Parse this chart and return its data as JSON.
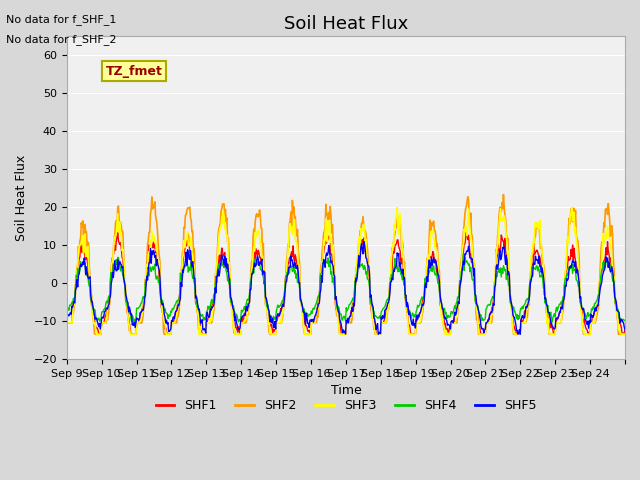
{
  "title": "Soil Heat Flux",
  "xlabel": "Time",
  "ylabel": "Soil Heat Flux",
  "ylim": [
    -20,
    65
  ],
  "yticks": [
    -20,
    -10,
    0,
    10,
    20,
    30,
    40,
    50,
    60
  ],
  "xlim": [
    0,
    16
  ],
  "xtick_positions": [
    0,
    1,
    2,
    3,
    4,
    5,
    6,
    7,
    8,
    9,
    10,
    11,
    12,
    13,
    14,
    15,
    16
  ],
  "xtick_labels": [
    "Sep 9",
    "Sep 10",
    "Sep 11",
    "Sep 12",
    "Sep 13",
    "Sep 14",
    "Sep 15",
    "Sep 16",
    "Sep 17",
    "Sep 18",
    "Sep 19",
    "Sep 20",
    "Sep 21",
    "Sep 22",
    "Sep 23",
    "Sep 24",
    ""
  ],
  "annotations": [
    "No data for f_SHF_1",
    "No data for f_SHF_2"
  ],
  "legend_box_label": "TZ_fmet",
  "legend_box_color": "#ffff99",
  "legend_box_text_color": "#990000",
  "legend_box_edge_color": "#aaaa00",
  "series_colors": [
    "#ff0000",
    "#ff9900",
    "#ffff00",
    "#00cc00",
    "#0000ff"
  ],
  "series_labels": [
    "SHF1",
    "SHF2",
    "SHF3",
    "SHF4",
    "SHF5"
  ],
  "background_color": "#d8d8d8",
  "plot_background": "#f0f0f0",
  "grid_color": "#ffffff",
  "title_fontsize": 13,
  "label_fontsize": 9,
  "tick_fontsize": 8
}
